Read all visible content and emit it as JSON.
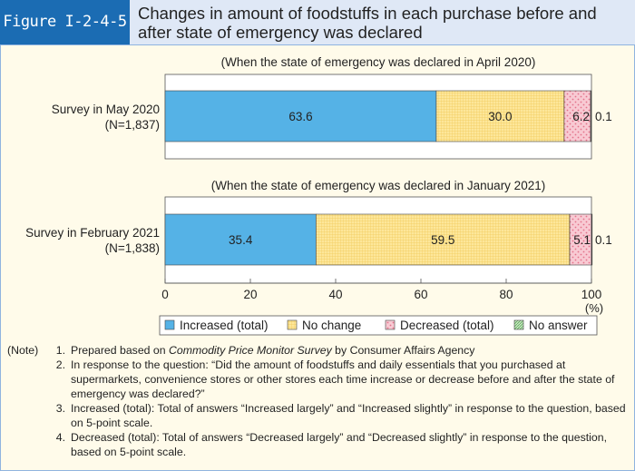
{
  "header": {
    "figure_label": "Figure I-2-4-5",
    "title": "Changes in amount of foodstuffs in each purchase before and after state of emergency was declared"
  },
  "chart_data": {
    "type": "bar",
    "orientation": "horizontal-stacked",
    "xlim": [
      0,
      100
    ],
    "xticks": [
      "0",
      "20",
      "40",
      "60",
      "80",
      "100"
    ],
    "xunit": "(%)",
    "legend_position": "bottom",
    "series": [
      {
        "name": "Increased (total)",
        "color": "#55b2e6",
        "pattern": "solid"
      },
      {
        "name": "No change",
        "color": "#fde79a",
        "pattern": "grid"
      },
      {
        "name": "Decreased (total)",
        "color": "#f6c2cd",
        "pattern": "dots"
      },
      {
        "name": "No answer",
        "color": "#a8d5a0",
        "pattern": "hatch"
      }
    ],
    "panels": [
      {
        "subtitle": "(When the state of emergency was declared in April 2020)",
        "category": "Survey in May 2020",
        "n": "(N=1,837)",
        "values": [
          63.6,
          30.0,
          6.2,
          0.1
        ],
        "labels": [
          "63.6",
          "30.0",
          "6.2",
          "0.1"
        ]
      },
      {
        "subtitle": "(When the state of emergency was declared in January 2021)",
        "category": "Survey in February 2021",
        "n": "(N=1,838)",
        "values": [
          35.4,
          59.5,
          5.1,
          0.1
        ],
        "labels": [
          "35.4",
          "59.5",
          "5.1",
          "0.1"
        ]
      }
    ]
  },
  "notes": {
    "label": "(Note)",
    "items": [
      {
        "num": "1.",
        "text": "Prepared based on Commodity Price Monitor Survey by Consumer Affairs Agency"
      },
      {
        "num": "2.",
        "text": "In response to the question: “Did the amount of foodstuffs and daily essentials that you purchased at supermarkets, convenience stores or other stores each time increase or decrease before and after the state of emergency was declared?”"
      },
      {
        "num": "3.",
        "text": "Increased (total): Total of answers “Increased largely” and “Increased slightly” in response to the question, based on 5-point scale."
      },
      {
        "num": "4.",
        "text": "Decreased (total): Total of answers “Decreased largely” and “Decreased slightly” in response to the question, based on 5-point scale."
      }
    ]
  }
}
